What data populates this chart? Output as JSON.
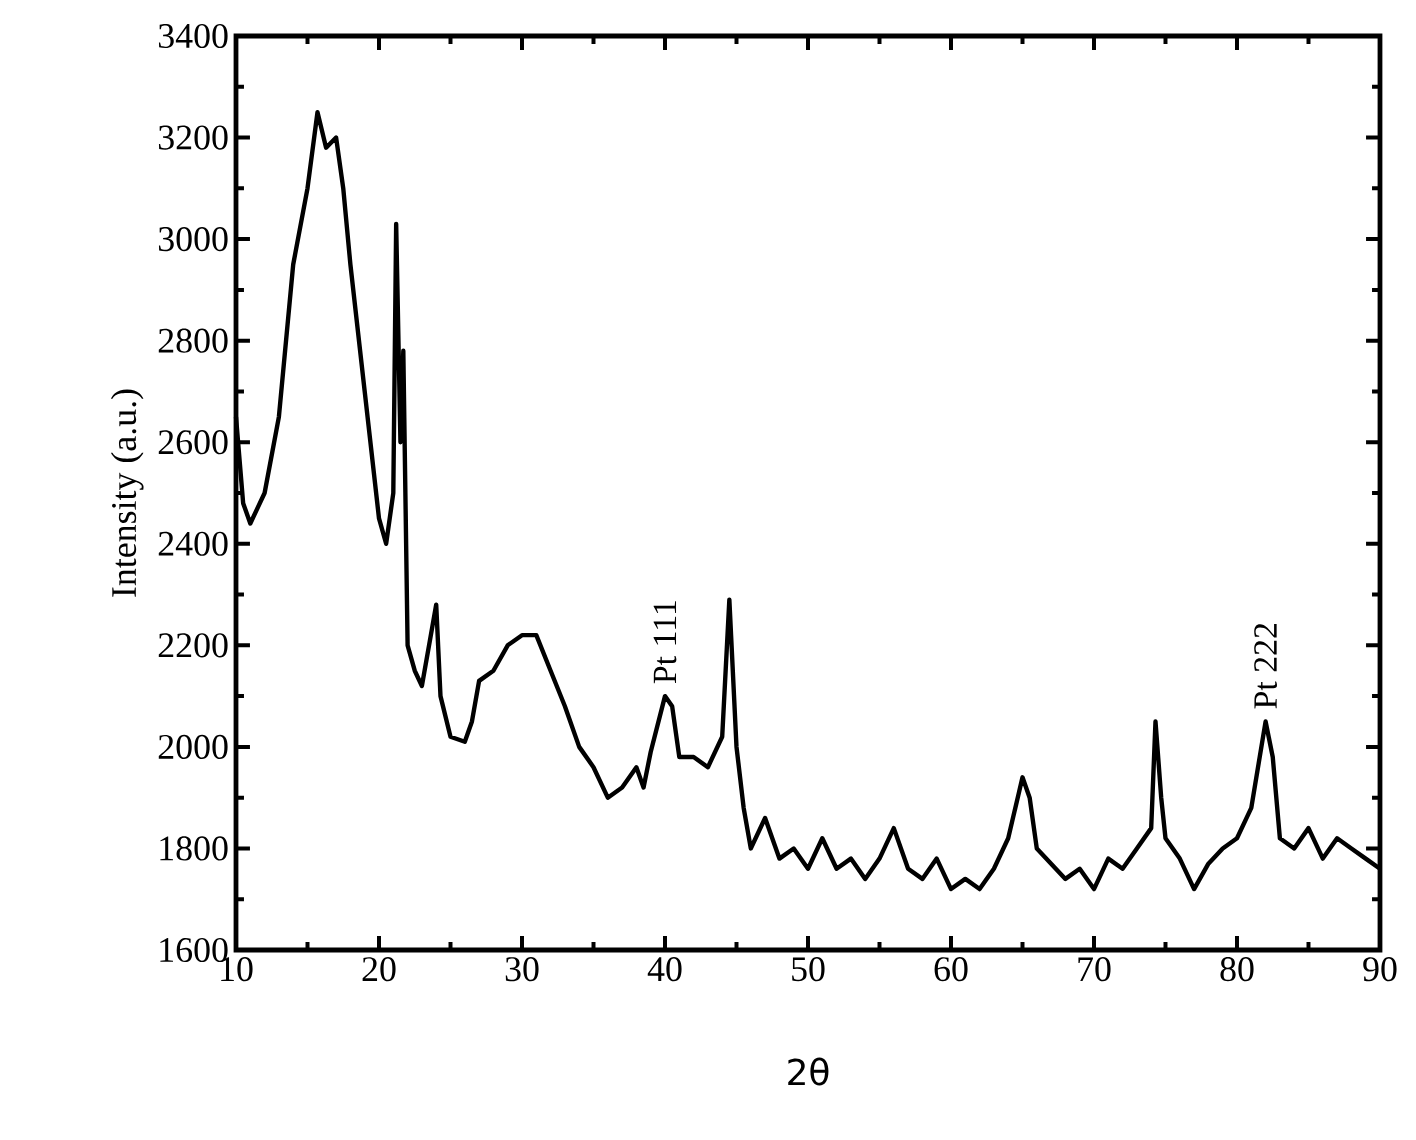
{
  "chart_data": {
    "type": "line",
    "xlabel": "2θ",
    "ylabel": "Intensity (a.u.)",
    "xlim": [
      10,
      90
    ],
    "xticks": [
      10,
      20,
      30,
      40,
      50,
      60,
      70,
      80,
      90
    ],
    "ylim": [
      1600,
      3400
    ],
    "yticks": [
      1600,
      1800,
      2000,
      2200,
      2400,
      2600,
      2800,
      3000,
      3200,
      3400
    ],
    "grid": false,
    "marker": "none",
    "line_style": "solid",
    "annotations": [
      {
        "text": "Pt 111",
        "x": 40,
        "y": 2100
      },
      {
        "text": "Pt 222",
        "x": 82,
        "y": 2050
      }
    ],
    "series": [
      {
        "color": "#000000",
        "x": [
          10,
          10.5,
          11,
          12,
          13,
          14,
          15,
          15.7,
          16.3,
          17,
          17.5,
          18,
          19,
          20,
          20.5,
          21,
          21.2,
          21.5,
          21.7,
          22,
          22.5,
          23,
          23.5,
          24,
          24.3,
          25,
          26,
          26.5,
          27,
          28,
          29,
          30,
          31,
          32,
          33,
          34,
          35,
          36,
          37,
          38,
          38.5,
          39,
          40,
          40.5,
          41,
          42,
          43,
          44,
          44.5,
          45,
          45.5,
          46,
          47,
          48,
          49,
          50,
          51,
          52,
          53,
          54,
          55,
          56,
          57,
          58,
          59,
          60,
          61,
          62,
          63,
          64,
          65,
          65.5,
          66,
          67,
          68,
          69,
          70,
          71,
          72,
          73,
          74,
          74.3,
          74.7,
          75,
          76,
          77,
          78,
          79,
          80,
          81,
          82,
          82.5,
          83,
          84,
          85,
          86,
          87,
          88,
          89,
          90
        ],
        "values": [
          2650,
          2480,
          2440,
          2500,
          2650,
          2950,
          3100,
          3250,
          3180,
          3200,
          3100,
          2950,
          2700,
          2450,
          2400,
          2500,
          3030,
          2600,
          2780,
          2200,
          2150,
          2120,
          2200,
          2280,
          2100,
          2020,
          2010,
          2050,
          2130,
          2150,
          2200,
          2220,
          2220,
          2150,
          2080,
          2000,
          1960,
          1900,
          1920,
          1960,
          1920,
          1990,
          2100,
          2080,
          1980,
          1980,
          1960,
          2020,
          2290,
          2000,
          1880,
          1800,
          1860,
          1780,
          1800,
          1760,
          1820,
          1760,
          1780,
          1740,
          1780,
          1840,
          1760,
          1740,
          1780,
          1720,
          1740,
          1720,
          1760,
          1820,
          1940,
          1900,
          1800,
          1770,
          1740,
          1760,
          1720,
          1780,
          1760,
          1800,
          1840,
          2050,
          1900,
          1820,
          1780,
          1720,
          1770,
          1800,
          1820,
          1880,
          2050,
          1980,
          1820,
          1800,
          1840,
          1780,
          1820,
          1800,
          1780,
          1760
        ]
      }
    ]
  }
}
